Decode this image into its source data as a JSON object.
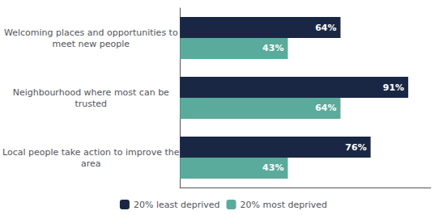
{
  "chart_data": {
    "type": "bar",
    "orientation": "horizontal",
    "categories": [
      "Local people take action to improve the\narea",
      "Neighbourhood where most can be\ntrusted",
      "Welcoming places and opportunities to\nmeet new people"
    ],
    "series": [
      {
        "name": "20% least deprived",
        "color": "#1a2744",
        "values": [
          76,
          91,
          64
        ],
        "value_labels": [
          "76%",
          "91%",
          "64%"
        ]
      },
      {
        "name": "20% most deprived",
        "color": "#5aab9b",
        "values": [
          43,
          64,
          43
        ],
        "value_labels": [
          "43%",
          "64%",
          "43%"
        ]
      }
    ],
    "xlim": [
      0,
      100
    ],
    "grid": false,
    "legend": "bottom",
    "data_labels": true,
    "tick_labels": "y"
  }
}
